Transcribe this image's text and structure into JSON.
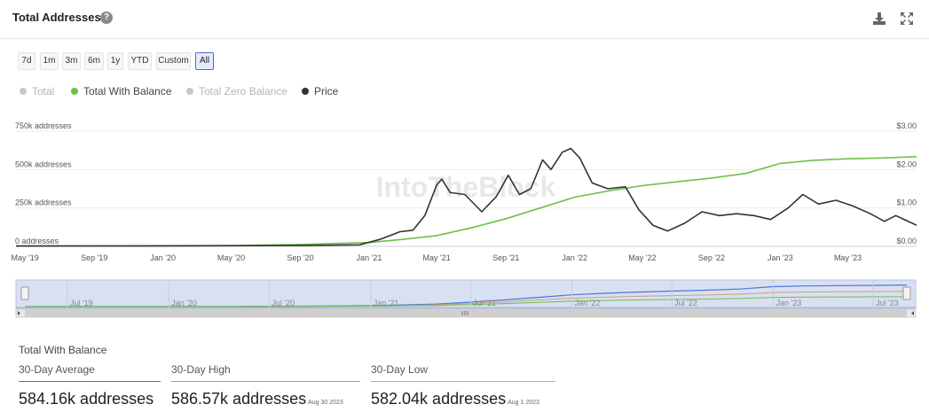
{
  "header": {
    "title": "Total Addresses",
    "help_icon": "question-circle-icon",
    "download_icon": "download-icon",
    "expand_icon": "expand-icon"
  },
  "range_buttons": [
    "7d",
    "1m",
    "3m",
    "6m",
    "1y",
    "YTD",
    "Custom",
    "All"
  ],
  "active_range": "All",
  "legend": [
    {
      "label": "Total",
      "color": "#c8c8c8",
      "active": false
    },
    {
      "label": "Total With Balance",
      "color": "#6cc04a",
      "active": true
    },
    {
      "label": "Total Zero Balance",
      "color": "#c8c8c8",
      "active": false
    },
    {
      "label": "Price",
      "color": "#333333",
      "active": true
    }
  ],
  "watermark": "IntoTheBlock",
  "chart_data": {
    "type": "line",
    "x_ticks": [
      "May '19",
      "Sep '19",
      "Jan '20",
      "May '20",
      "Sep '20",
      "Jan '21",
      "May '21",
      "Sep '21",
      "Jan '22",
      "May '22",
      "Sep '22",
      "Jan '23",
      "May '23"
    ],
    "y_left_ticks": [
      "0 addresses",
      "250k addresses",
      "500k addresses",
      "750k addresses"
    ],
    "y_right_ticks": [
      "$0.00",
      "$1.00",
      "$2.00",
      "$3.00"
    ],
    "ylim_left": [
      0,
      750000
    ],
    "ylim_right": [
      0,
      3
    ],
    "series": [
      {
        "name": "Total With Balance",
        "axis": "left",
        "color": "#6cc04a",
        "points": [
          [
            "2019-04-15",
            1000
          ],
          [
            "2019-09-01",
            2000
          ],
          [
            "2020-01-01",
            4000
          ],
          [
            "2020-05-01",
            6000
          ],
          [
            "2020-09-01",
            12000
          ],
          [
            "2021-01-01",
            25000
          ],
          [
            "2021-03-01",
            45000
          ],
          [
            "2021-05-01",
            70000
          ],
          [
            "2021-07-01",
            120000
          ],
          [
            "2021-09-01",
            180000
          ],
          [
            "2021-11-01",
            250000
          ],
          [
            "2022-01-01",
            320000
          ],
          [
            "2022-03-01",
            360000
          ],
          [
            "2022-05-01",
            395000
          ],
          [
            "2022-07-01",
            420000
          ],
          [
            "2022-09-01",
            445000
          ],
          [
            "2022-11-01",
            475000
          ],
          [
            "2023-01-01",
            540000
          ],
          [
            "2023-03-01",
            560000
          ],
          [
            "2023-05-01",
            570000
          ],
          [
            "2023-07-01",
            575000
          ],
          [
            "2023-08-31",
            584000
          ]
        ]
      },
      {
        "name": "Price",
        "axis": "right",
        "color": "#333333",
        "points": [
          [
            "2019-04-15",
            0.01
          ],
          [
            "2020-01-01",
            0.01
          ],
          [
            "2020-09-01",
            0.02
          ],
          [
            "2020-12-15",
            0.04
          ],
          [
            "2021-01-20",
            0.18
          ],
          [
            "2021-02-25",
            0.38
          ],
          [
            "2021-03-20",
            0.42
          ],
          [
            "2021-04-10",
            0.8
          ],
          [
            "2021-05-01",
            1.6
          ],
          [
            "2021-05-10",
            1.75
          ],
          [
            "2021-05-25",
            1.4
          ],
          [
            "2021-06-20",
            1.35
          ],
          [
            "2021-07-20",
            0.9
          ],
          [
            "2021-08-15",
            1.3
          ],
          [
            "2021-09-05",
            1.85
          ],
          [
            "2021-09-25",
            1.35
          ],
          [
            "2021-10-15",
            1.5
          ],
          [
            "2021-11-05",
            2.25
          ],
          [
            "2021-11-20",
            2.0
          ],
          [
            "2021-12-10",
            2.45
          ],
          [
            "2021-12-25",
            2.55
          ],
          [
            "2022-01-10",
            2.3
          ],
          [
            "2022-02-01",
            1.65
          ],
          [
            "2022-03-01",
            1.5
          ],
          [
            "2022-04-01",
            1.55
          ],
          [
            "2022-04-25",
            0.95
          ],
          [
            "2022-05-20",
            0.55
          ],
          [
            "2022-06-15",
            0.4
          ],
          [
            "2022-07-15",
            0.6
          ],
          [
            "2022-08-15",
            0.9
          ],
          [
            "2022-09-15",
            0.8
          ],
          [
            "2022-10-15",
            0.85
          ],
          [
            "2022-11-15",
            0.8
          ],
          [
            "2022-12-15",
            0.7
          ],
          [
            "2023-01-15",
            1.0
          ],
          [
            "2023-02-10",
            1.35
          ],
          [
            "2023-03-10",
            1.1
          ],
          [
            "2023-04-10",
            1.2
          ],
          [
            "2023-05-10",
            1.05
          ],
          [
            "2023-06-10",
            0.85
          ],
          [
            "2023-07-05",
            0.65
          ],
          [
            "2023-07-25",
            0.8
          ],
          [
            "2023-08-31",
            0.55
          ]
        ]
      }
    ],
    "grid": true
  },
  "navigator": {
    "labels": [
      "Jul '19",
      "Jan '20",
      "Jul '20",
      "Jan '21",
      "Jul '21",
      "Jan '22",
      "Jul '22",
      "Jan '23",
      "Jul '23"
    ]
  },
  "stats": {
    "title": "Total With Balance",
    "items": [
      {
        "label": "30-Day Average",
        "value": "584.16k addresses",
        "date": "",
        "color": "#4a6ad8"
      },
      {
        "label": "30-Day High",
        "value": "586.57k addresses",
        "date": "Aug 30 2023",
        "color": "#6cc04a"
      },
      {
        "label": "30-Day Low",
        "value": "582.04k addresses",
        "date": "Aug 1 2023",
        "color": "#e0b020"
      }
    ]
  }
}
